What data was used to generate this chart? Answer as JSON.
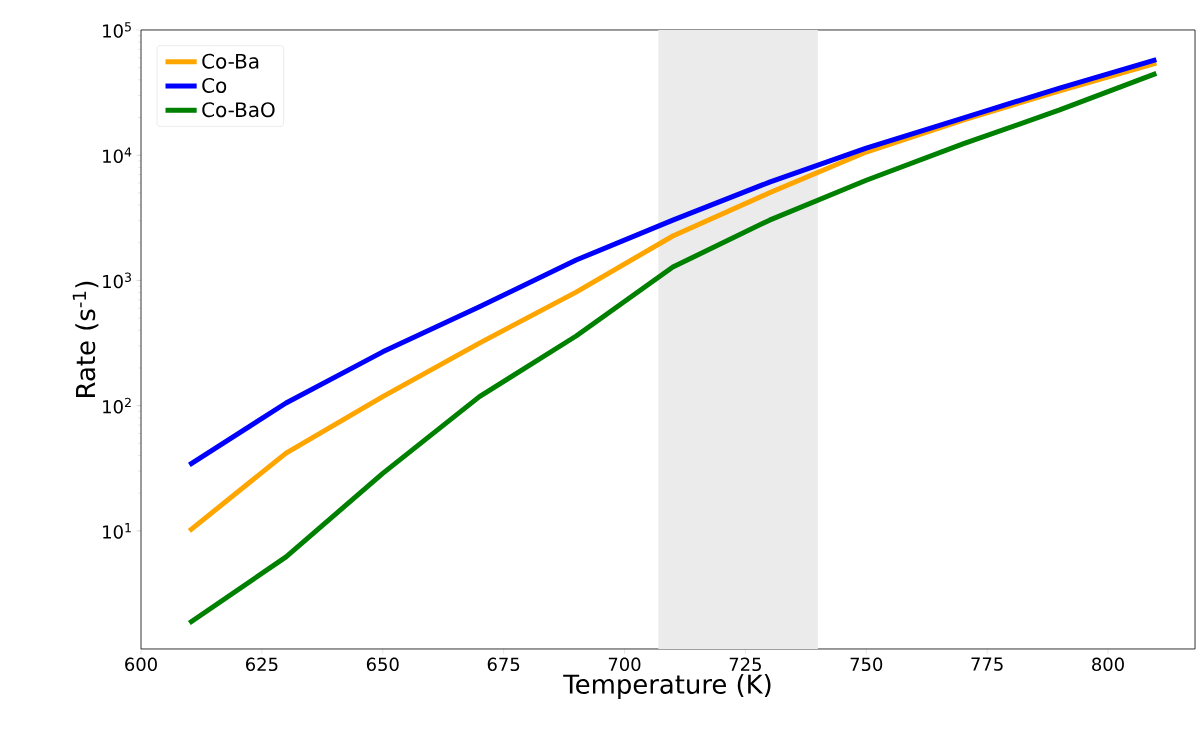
{
  "chart_data": {
    "type": "line",
    "xlabel": "Temperature (K)",
    "ylabel": "Rate (s$^{-1}$)",
    "log": "y",
    "xlim": [
      600,
      818
    ],
    "ylim": [
      1.14,
      100000
    ],
    "xticks": [
      600,
      625,
      650,
      675,
      700,
      725,
      750,
      775,
      800
    ],
    "yticks": [
      {
        "value": 10,
        "label": "10$^{1}$"
      },
      {
        "value": 100,
        "label": "10$^{2}$"
      },
      {
        "value": 1000,
        "label": "10$^{3}$"
      },
      {
        "value": 10000,
        "label": "10$^{4}$"
      },
      {
        "value": 100000,
        "label": "10$^{5}$"
      }
    ],
    "x": [
      610,
      630,
      650,
      670,
      690,
      710,
      730,
      750,
      770,
      790,
      810
    ],
    "series": [
      {
        "name": "Co-Ba",
        "color": "#ffa500",
        "values": [
          10,
          41.8,
          118,
          316,
          807,
          2265,
          5010,
          10600,
          19100,
          32700,
          54500
        ]
      },
      {
        "name": "Co",
        "color": "#0000ff",
        "values": [
          33.7,
          105,
          269,
          617,
          1455,
          3030,
          6100,
          11400,
          19800,
          34400,
          58000
        ]
      },
      {
        "name": "Co-BaO",
        "color": "#008000",
        "values": [
          1.84,
          6.2,
          28.8,
          118,
          360,
          1280,
          3030,
          6310,
          12300,
          23000,
          45000
        ]
      }
    ],
    "bands": [
      {
        "axis": "x",
        "from": 707,
        "to": 740,
        "color": "#ebebeb"
      }
    ],
    "legend": "top left",
    "grid": false,
    "marker": "none",
    "line_style": "solid"
  }
}
